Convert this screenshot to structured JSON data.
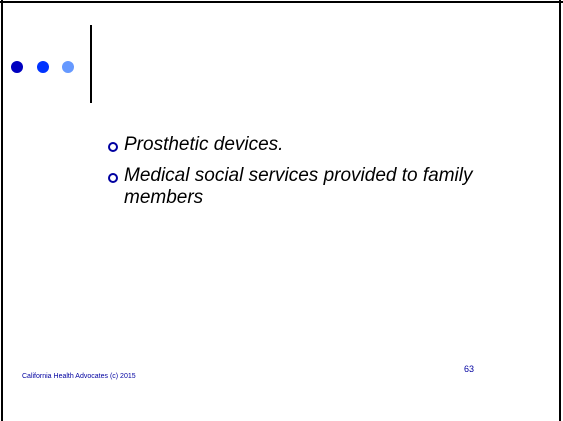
{
  "bullets": [
    "Prosthetic devices.",
    "Medical social services provided to family members"
  ],
  "footer": {
    "text": "California Health Advocates (c) 2015",
    "page_number": "63"
  }
}
